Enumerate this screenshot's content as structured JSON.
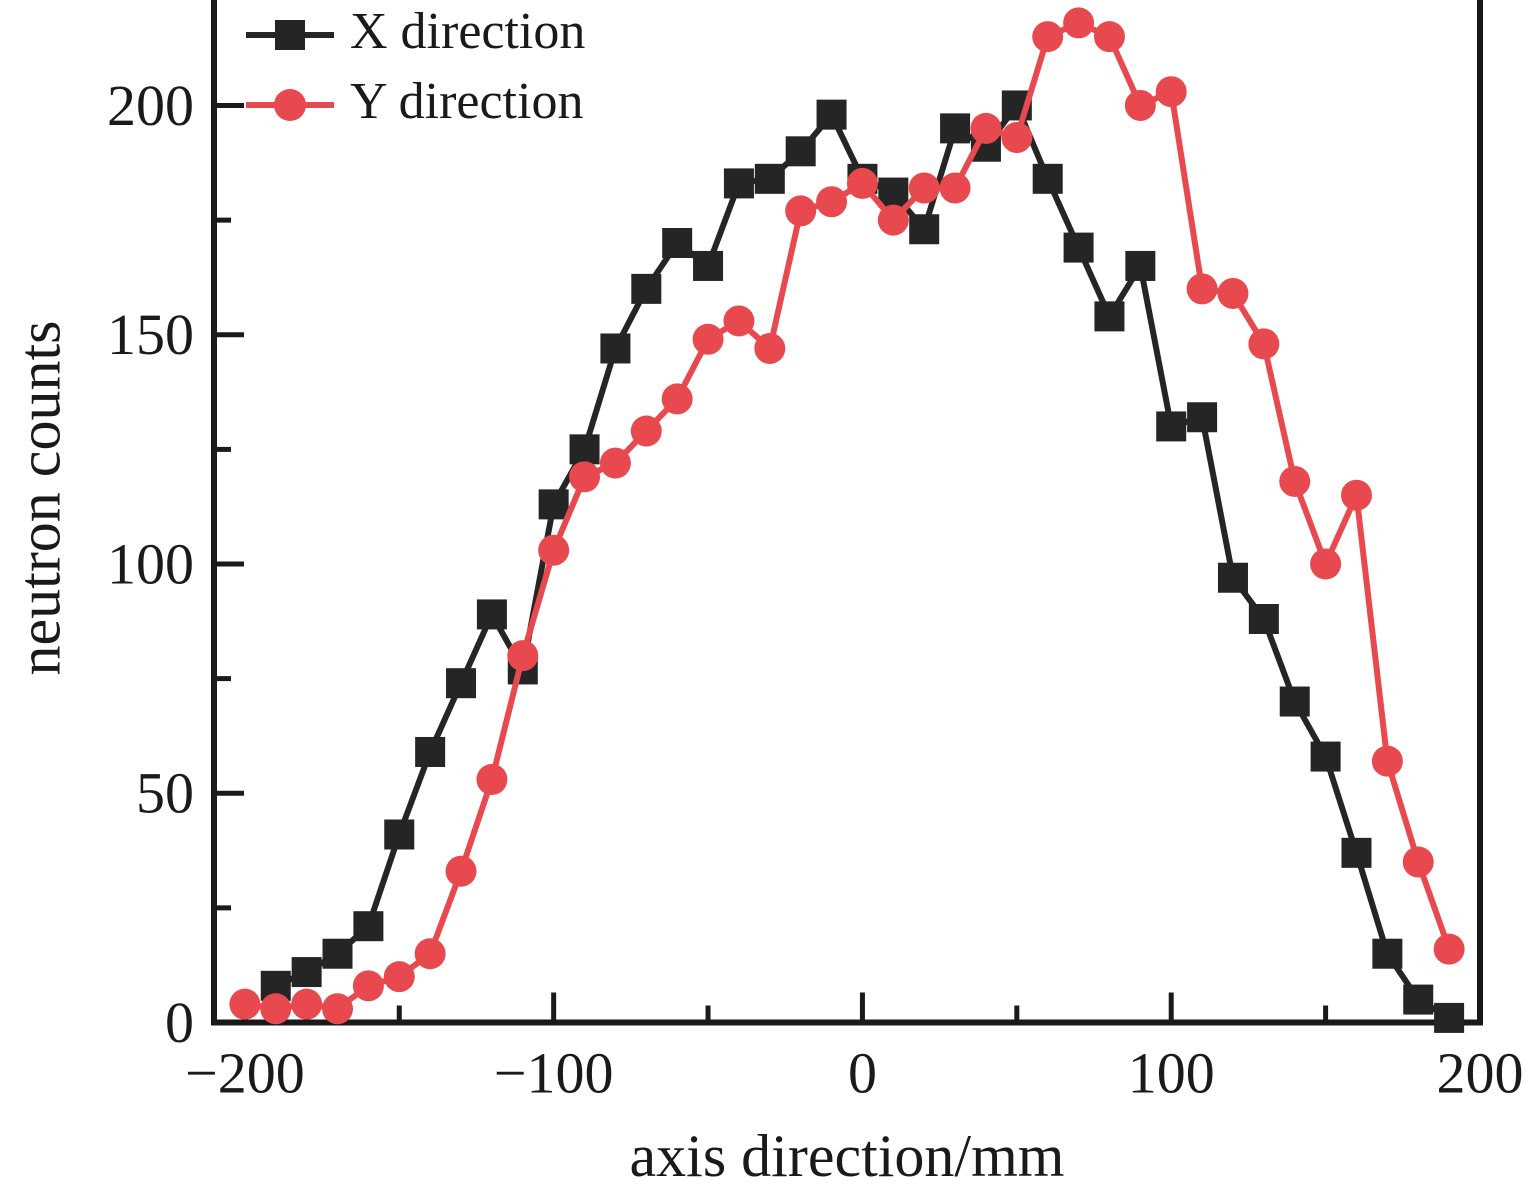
{
  "figure": {
    "legend": {
      "items": [
        {
          "label": "X direction",
          "marker": "square",
          "color": "#252525"
        },
        {
          "label": "Y direction",
          "marker": "circle",
          "color": "#e8494e"
        }
      ]
    },
    "x_axis": {
      "title": "axis direction/mm",
      "range": [
        -210,
        200
      ],
      "major_ticks": [
        -200,
        -100,
        0,
        100,
        200
      ],
      "major_tick_labels": [
        "−200",
        "−100",
        "0",
        "100",
        "200"
      ],
      "minor_ticks": [
        -150,
        -50,
        50,
        150
      ]
    },
    "y_axis": {
      "title": "neutron counts",
      "range": [
        0,
        223
      ],
      "major_ticks": [
        0,
        50,
        100,
        150,
        200
      ],
      "major_tick_labels": [
        "0",
        "50",
        "100",
        "150",
        "200"
      ],
      "minor_ticks": [
        25,
        75,
        125,
        175
      ]
    }
  },
  "chart_data": {
    "type": "line",
    "title": "",
    "xlabel": "axis direction/mm",
    "ylabel": "neutron counts",
    "xlim": [
      -210,
      200
    ],
    "ylim": [
      0,
      223
    ],
    "grid": false,
    "legend_position": "top-left",
    "axis_color": "#1a1a1a",
    "series": [
      {
        "name": "X direction",
        "color": "#252525",
        "marker": "square",
        "x": [
          -190,
          -180,
          -170,
          -160,
          -150,
          -140,
          -130,
          -120,
          -110,
          -100,
          -90,
          -80,
          -70,
          -60,
          -50,
          -40,
          -30,
          -20,
          -10,
          0,
          10,
          20,
          30,
          40,
          50,
          60,
          70,
          80,
          90,
          100,
          110,
          120,
          130,
          140,
          150,
          160,
          170,
          180,
          190
        ],
        "y": [
          8,
          11,
          15,
          21,
          41,
          59,
          74,
          89,
          77,
          113,
          125,
          147,
          160,
          170,
          165,
          183,
          184,
          190,
          198,
          184,
          181,
          173,
          195,
          191,
          200,
          184,
          169,
          154,
          165,
          130,
          132,
          97,
          88,
          70,
          58,
          37,
          15,
          5,
          1
        ]
      },
      {
        "name": "Y direction",
        "color": "#e8494e",
        "marker": "circle",
        "x": [
          -200,
          -190,
          -180,
          -170,
          -160,
          -150,
          -140,
          -130,
          -120,
          -110,
          -100,
          -90,
          -80,
          -70,
          -60,
          -50,
          -40,
          -30,
          -20,
          -10,
          0,
          10,
          20,
          30,
          40,
          50,
          60,
          70,
          80,
          90,
          100,
          110,
          120,
          130,
          140,
          150,
          160,
          170,
          180,
          190
        ],
        "y": [
          4,
          3,
          4,
          3,
          8,
          10,
          15,
          33,
          53,
          80,
          103,
          119,
          122,
          129,
          136,
          149,
          153,
          147,
          177,
          179,
          183,
          175,
          182,
          182,
          195,
          193,
          215,
          218,
          215,
          200,
          203,
          160,
          159,
          148,
          118,
          100,
          115,
          57,
          35,
          16
        ]
      }
    ]
  }
}
